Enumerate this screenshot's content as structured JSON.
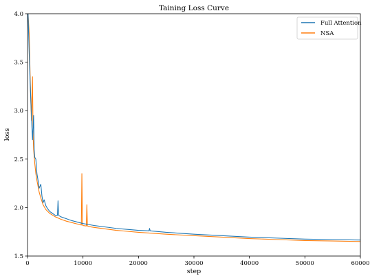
{
  "chart_data": {
    "type": "line",
    "title": "Taining Loss Curve",
    "xlabel": "step",
    "ylabel": "loss",
    "xlim": [
      0,
      60000
    ],
    "ylim": [
      1.5,
      4.0
    ],
    "xticks": [
      0,
      10000,
      20000,
      30000,
      40000,
      50000,
      60000
    ],
    "xtick_labels": [
      "0",
      "10000",
      "20000",
      "30000",
      "40000",
      "50000",
      "60000"
    ],
    "yticks": [
      1.5,
      2.0,
      2.5,
      3.0,
      3.5,
      4.0
    ],
    "ytick_labels": [
      "1.5",
      "2.0",
      "2.5",
      "3.0",
      "3.5",
      "4.0"
    ],
    "grid": false,
    "legend_position": "top-right",
    "series": [
      {
        "name": "Full Attention",
        "color": "#1f77b4",
        "x": [
          100,
          300,
          500,
          700,
          900,
          1100,
          1200,
          1300,
          1500,
          1700,
          1900,
          2100,
          2400,
          2600,
          2800,
          3000,
          3300,
          3600,
          4000,
          4500,
          5000,
          5400,
          5500,
          5600,
          6000,
          7000,
          8000,
          9000,
          10000,
          11000,
          12000,
          14000,
          16000,
          18000,
          20000,
          21900,
          22000,
          22100,
          25000,
          30000,
          35000,
          40000,
          45000,
          50000,
          55000,
          60000
        ],
        "y": [
          4.0,
          3.6,
          3.25,
          2.95,
          2.7,
          2.95,
          2.6,
          2.52,
          2.5,
          2.35,
          2.28,
          2.2,
          2.24,
          2.12,
          2.05,
          2.08,
          2.02,
          1.99,
          1.96,
          1.94,
          1.92,
          1.92,
          2.07,
          1.92,
          1.905,
          1.885,
          1.865,
          1.85,
          1.835,
          1.825,
          1.815,
          1.8,
          1.785,
          1.775,
          1.765,
          1.76,
          1.785,
          1.76,
          1.745,
          1.725,
          1.71,
          1.695,
          1.685,
          1.675,
          1.67,
          1.665
        ]
      },
      {
        "name": "NSA",
        "color": "#ff7f0e",
        "x": [
          100,
          300,
          500,
          700,
          900,
          1000,
          1100,
          1300,
          1500,
          1700,
          1900,
          2100,
          2400,
          2800,
          3300,
          4000,
          5000,
          6000,
          7000,
          8000,
          9000,
          9700,
          9800,
          9900,
          10000,
          10600,
          10700,
          10800,
          11000,
          12000,
          14000,
          16000,
          18000,
          20000,
          25000,
          30000,
          35000,
          40000,
          45000,
          50000,
          55000,
          60000
        ],
        "y": [
          4.0,
          3.8,
          3.3,
          2.9,
          3.35,
          2.75,
          2.6,
          2.46,
          2.35,
          2.28,
          2.22,
          2.16,
          2.1,
          2.03,
          1.98,
          1.94,
          1.905,
          1.88,
          1.86,
          1.845,
          1.83,
          1.82,
          2.35,
          1.82,
          1.815,
          1.81,
          2.03,
          1.81,
          1.805,
          1.795,
          1.78,
          1.765,
          1.755,
          1.745,
          1.725,
          1.71,
          1.695,
          1.68,
          1.67,
          1.66,
          1.655,
          1.65
        ]
      }
    ]
  }
}
